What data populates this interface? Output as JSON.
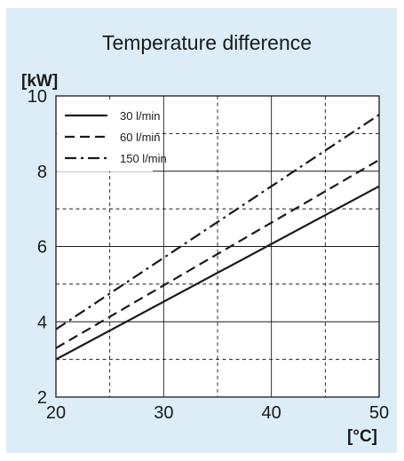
{
  "colors": {
    "panel_bg": "#dcedf8",
    "ink": "#1a1a1a"
  },
  "chart_data": {
    "type": "line",
    "title": "Temperature difference",
    "xlabel": "[°C]",
    "ylabel": "[kW]",
    "xlim": [
      20,
      50
    ],
    "ylim": [
      2,
      10
    ],
    "x_ticks": [
      "20",
      "30",
      "40",
      "50"
    ],
    "y_ticks": [
      "2",
      "4",
      "6",
      "8",
      "10"
    ],
    "grid": true,
    "legend_position": "top-left",
    "series": [
      {
        "name": "30 l/min",
        "style": "solid",
        "x": [
          20,
          50
        ],
        "y": [
          3.0,
          7.6
        ]
      },
      {
        "name": "60 l/min",
        "style": "dashed",
        "x": [
          20,
          50
        ],
        "y": [
          3.3,
          8.3
        ]
      },
      {
        "name": "150 l/min",
        "style": "dash-dot",
        "x": [
          20,
          50
        ],
        "y": [
          3.8,
          9.5
        ]
      }
    ]
  }
}
